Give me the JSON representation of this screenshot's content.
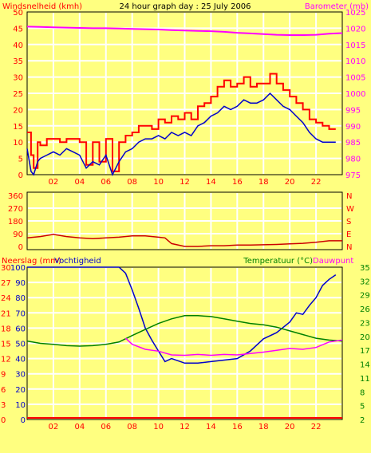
{
  "title": "24 hour graph day : 25 July 2006",
  "colors": {
    "background": "#ffff80",
    "plot_bg": "#ffff80",
    "grid": "#ffffff",
    "frame": "#000000",
    "axis_text": "#ff0000",
    "gust": "#ff0000",
    "wind": "#0000cc",
    "barometer": "#ff00ff",
    "direction": "#cc0000",
    "rain": "#ff0000",
    "humidity": "#0000cc",
    "temperature": "#008000",
    "dewpoint": "#ff00ff"
  },
  "chart_data": [
    {
      "type": "line",
      "panel": "wind-barometer",
      "title": "24 hour graph day : 25 July 2006",
      "ylabel": "Windsnelheid (kmh)",
      "y2label": "Barometer (mb)",
      "ylim": [
        0,
        50
      ],
      "y2lim": [
        975,
        1025
      ],
      "yticks": [
        "0",
        "5",
        "10",
        "15",
        "20",
        "25",
        "30",
        "35",
        "40",
        "45",
        "50"
      ],
      "y2ticks": [
        "975",
        "980",
        "985",
        "990",
        "995",
        "1000",
        "1005",
        "1010",
        "1015",
        "1020",
        "1025"
      ],
      "xlim": [
        0,
        24
      ],
      "xticks": [
        "02",
        "04",
        "06",
        "08",
        "10",
        "12",
        "14",
        "16",
        "18",
        "20",
        "22"
      ],
      "grid": true,
      "series": [
        {
          "name": "gust",
          "axis": "left",
          "x": [
            0,
            0.3,
            0.5,
            0.8,
            1,
            1.5,
            2,
            2.5,
            3,
            3.5,
            4,
            4.5,
            5,
            5.5,
            6,
            6.5,
            7,
            7.5,
            8,
            8.5,
            9,
            9.5,
            10,
            10.5,
            11,
            11.5,
            12,
            12.5,
            13,
            13.5,
            14,
            14.5,
            15,
            15.5,
            16,
            16.5,
            17,
            17.5,
            18,
            18.5,
            19,
            19.5,
            20,
            20.5,
            21,
            21.5,
            22,
            22.5,
            23,
            23.5
          ],
          "values": [
            13,
            6,
            2,
            10,
            9,
            11,
            11,
            10,
            11,
            11,
            10,
            3,
            10,
            4,
            11,
            1,
            10,
            12,
            13,
            15,
            15,
            14,
            17,
            16,
            18,
            17,
            19,
            17,
            21,
            22,
            24,
            27,
            29,
            27,
            28,
            30,
            27,
            28,
            28,
            31,
            28,
            26,
            24,
            22,
            20,
            17,
            16,
            15,
            14,
            14
          ]
        },
        {
          "name": "wind",
          "axis": "left",
          "x": [
            0,
            0.3,
            0.5,
            0.8,
            1,
            1.5,
            2,
            2.5,
            3,
            3.5,
            4,
            4.5,
            5,
            5.5,
            6,
            6.5,
            7,
            7.5,
            8,
            8.5,
            9,
            9.5,
            10,
            10.5,
            11,
            11.5,
            12,
            12.5,
            13,
            13.5,
            14,
            14.5,
            15,
            15.5,
            16,
            16.5,
            17,
            17.5,
            18,
            18.5,
            19,
            19.5,
            20,
            20.5,
            21,
            21.5,
            22,
            22.5,
            23,
            23.5
          ],
          "values": [
            8,
            1,
            0,
            4,
            5,
            6,
            7,
            6,
            8,
            7,
            6,
            2,
            4,
            3,
            6,
            0,
            4,
            7,
            8,
            10,
            11,
            11,
            12,
            11,
            13,
            12,
            13,
            12,
            15,
            16,
            18,
            19,
            21,
            20,
            21,
            23,
            22,
            22,
            23,
            25,
            23,
            21,
            20,
            18,
            16,
            13,
            11,
            10,
            10,
            10
          ]
        },
        {
          "name": "barometer",
          "axis": "right",
          "x": [
            0,
            1,
            2,
            3,
            4,
            5,
            6,
            7,
            8,
            9,
            10,
            11,
            12,
            13,
            14,
            15,
            16,
            17,
            18,
            19,
            20,
            21,
            22,
            23,
            24
          ],
          "values": [
            1020.5,
            1020.4,
            1020.3,
            1020.2,
            1020.1,
            1020.0,
            1020.0,
            1019.9,
            1019.8,
            1019.7,
            1019.6,
            1019.4,
            1019.3,
            1019.2,
            1019.1,
            1018.9,
            1018.6,
            1018.4,
            1018.2,
            1018.0,
            1017.9,
            1017.9,
            1018.0,
            1018.3,
            1018.5
          ]
        }
      ]
    },
    {
      "type": "line",
      "panel": "wind-direction",
      "yticks": [
        "0",
        "90",
        "180",
        "270",
        "360"
      ],
      "compass_labels": [
        "N",
        "E",
        "S",
        "W",
        "N"
      ],
      "ylim": [
        0,
        360
      ],
      "xlim": [
        0,
        24
      ],
      "grid": true,
      "series": [
        {
          "name": "direction",
          "x": [
            0,
            1,
            2,
            3,
            4,
            5,
            6,
            7,
            8,
            9,
            10,
            10.5,
            11,
            12,
            13,
            14,
            15,
            16,
            17,
            18,
            19,
            20,
            21,
            22,
            23,
            24
          ],
          "values": [
            60,
            70,
            85,
            70,
            60,
            55,
            60,
            65,
            75,
            75,
            65,
            60,
            20,
            0,
            0,
            5,
            5,
            10,
            10,
            12,
            14,
            18,
            22,
            30,
            40,
            40
          ]
        }
      ]
    },
    {
      "type": "line",
      "panel": "humidity-temperature",
      "ylabel": "Neerslag (mm)",
      "ylabel2": "Vochtigheid",
      "y2label": "Temperatuur (°C)",
      "y2label2": "Dauwpunt",
      "rain_ticks": [
        "0",
        "3",
        "6",
        "9",
        "12",
        "15",
        "18",
        "21",
        "24",
        "27",
        "30"
      ],
      "humidity_ticks": [
        "0",
        "10",
        "20",
        "30",
        "40",
        "50",
        "60",
        "70",
        "80",
        "90",
        "100"
      ],
      "temp_ticks": [
        "2",
        "5",
        "8",
        "11",
        "14",
        "17",
        "20",
        "23",
        "26",
        "29",
        "32",
        "35"
      ],
      "xlim": [
        0,
        24
      ],
      "xticks": [
        "02",
        "04",
        "06",
        "08",
        "10",
        "12",
        "14",
        "16",
        "18",
        "20",
        "22"
      ],
      "grid": true,
      "series": [
        {
          "name": "rain",
          "x": [
            0,
            24
          ],
          "values": [
            0,
            0
          ]
        },
        {
          "name": "humidity",
          "x": [
            0,
            1,
            2,
            3,
            4,
            5,
            6,
            7,
            7.5,
            8,
            8.5,
            9,
            9.5,
            10,
            10.5,
            11,
            12,
            13,
            14,
            15,
            16,
            17,
            18,
            19,
            20,
            20.5,
            21,
            21.5,
            22,
            22.5,
            23,
            23.5
          ],
          "values": [
            100,
            100,
            100,
            100,
            100,
            100,
            100,
            100,
            96,
            85,
            73,
            60,
            52,
            45,
            38,
            40,
            37,
            37,
            38,
            39,
            40,
            45,
            53,
            57,
            64,
            70,
            69,
            75,
            80,
            88,
            92,
            95
          ]
        },
        {
          "name": "temperature",
          "x": [
            0,
            1,
            2,
            3,
            4,
            5,
            6,
            7,
            8,
            9,
            10,
            11,
            12,
            13,
            14,
            15,
            16,
            17,
            18,
            19,
            20,
            21,
            22,
            23,
            24
          ],
          "values": [
            19.0,
            18.5,
            18.3,
            18.0,
            17.9,
            18.0,
            18.3,
            18.8,
            20.2,
            21.5,
            22.8,
            23.8,
            24.5,
            24.5,
            24.3,
            23.8,
            23.3,
            22.8,
            22.5,
            22.0,
            21.2,
            20.4,
            19.6,
            19.2,
            19.0
          ]
        },
        {
          "name": "dewpoint",
          "x": [
            0,
            7.5,
            8,
            9,
            10,
            11,
            12,
            13,
            14,
            15,
            16,
            17,
            18,
            19,
            20,
            21,
            22,
            23,
            24
          ],
          "values": [
            null,
            19.6,
            18.3,
            17.2,
            16.8,
            16.0,
            15.9,
            16.1,
            15.9,
            16.1,
            16.0,
            16.3,
            16.6,
            17.0,
            17.4,
            17.2,
            17.6,
            18.8,
            19.2
          ]
        }
      ]
    }
  ]
}
